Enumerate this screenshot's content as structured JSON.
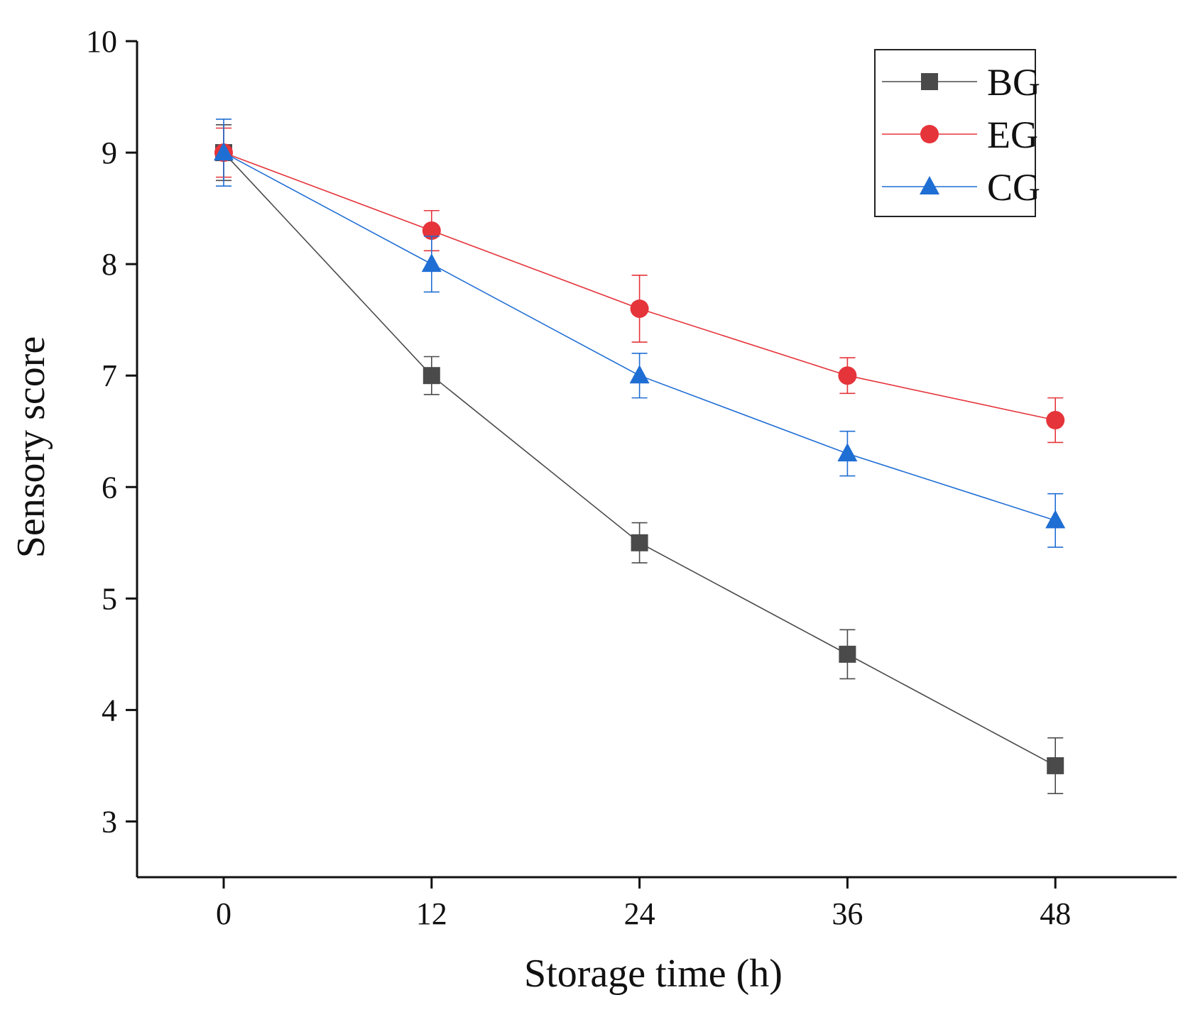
{
  "chart_data": {
    "type": "line",
    "title": "",
    "xlabel": "Storage time (h)",
    "ylabel": "Sensory score",
    "x": [
      0,
      12,
      24,
      36,
      48
    ],
    "x_tick_labels": [
      "0",
      "12",
      "24",
      "36",
      "48"
    ],
    "xlim": [
      -5,
      55
    ],
    "ylim": [
      2.5,
      10
    ],
    "y_ticks": [
      3,
      4,
      5,
      6,
      7,
      8,
      9,
      10
    ],
    "y_tick_labels": [
      "3",
      "4",
      "5",
      "6",
      "7",
      "8",
      "9",
      "10"
    ],
    "grid": false,
    "legend_position": "top-right",
    "series": [
      {
        "name": "BG",
        "marker": "square",
        "color": "#4a4a4a",
        "values": [
          9.0,
          7.0,
          5.5,
          4.5,
          3.5
        ],
        "errors": [
          0.25,
          0.17,
          0.18,
          0.22,
          0.25
        ]
      },
      {
        "name": "EG",
        "marker": "circle",
        "color": "#e5343a",
        "values": [
          9.0,
          8.3,
          7.6,
          7.0,
          6.6
        ],
        "errors": [
          0.22,
          0.18,
          0.3,
          0.16,
          0.2
        ]
      },
      {
        "name": "CG",
        "marker": "triangle",
        "color": "#1f6ed4",
        "values": [
          9.0,
          8.0,
          7.0,
          6.3,
          5.7
        ],
        "errors": [
          0.3,
          0.25,
          0.2,
          0.2,
          0.24
        ]
      }
    ]
  }
}
